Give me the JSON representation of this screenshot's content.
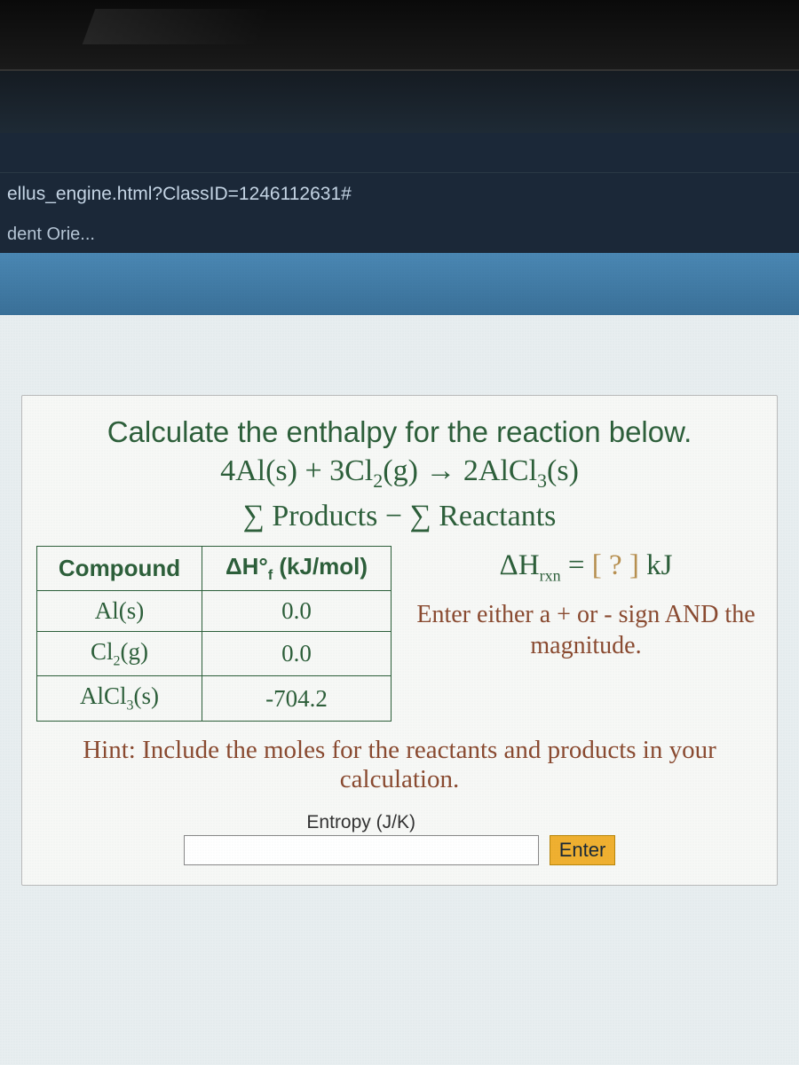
{
  "browser": {
    "url_fragment": "ellus_engine.html?ClassID=1246112631#",
    "bookmark_label": "dent Orie..."
  },
  "question": {
    "prompt": "Calculate the enthalpy for the reaction below.",
    "equation": "4Al(s) + 3Cl₂(g) → 2AlCl₃(s)",
    "formula": "∑ Products − ∑ Reactants",
    "table": {
      "columns": [
        "Compound",
        "ΔH°f (kJ/mol)"
      ],
      "rows": [
        [
          "Al(s)",
          "0.0"
        ],
        [
          "Cl₂(g)",
          "0.0"
        ],
        [
          "AlCl₃(s)",
          "-704.2"
        ]
      ]
    },
    "answer_expr": "ΔHrxn = [ ? ] kJ",
    "instruction": "Enter either a + or - sign AND the magnitude.",
    "hint": "Hint: Include the moles for the reactants and products in your calculation.",
    "input_label": "Entropy (J/K)",
    "enter_label": "Enter"
  },
  "colors": {
    "text_green": "#2d5f3a",
    "text_brown": "#8a4a30",
    "button_bg": "#f0b030",
    "band_blue": "#4a87b3",
    "browser_bg": "#1b2838"
  }
}
